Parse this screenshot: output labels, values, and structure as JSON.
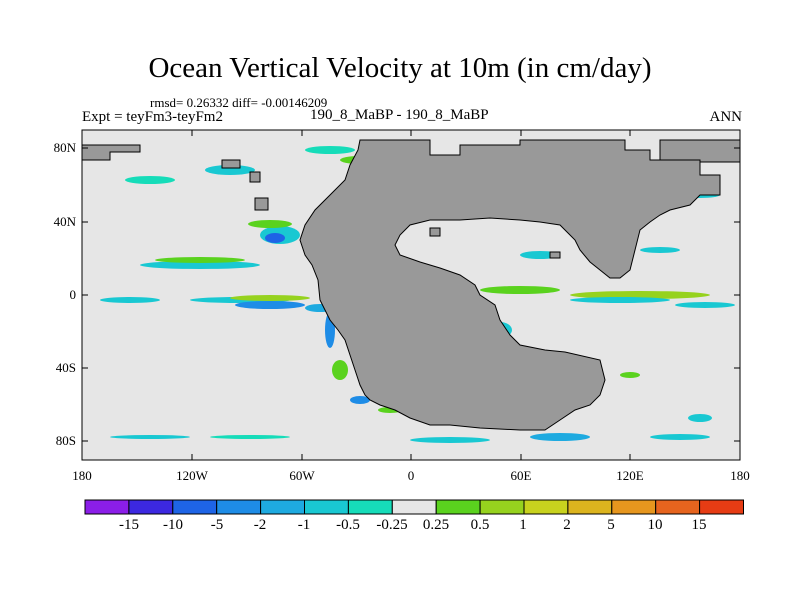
{
  "title": "Ocean Vertical Velocity at 10m (in cm/day)",
  "stats": "rmsd= 0.26332 diff= -0.00146209",
  "expt": "Expt = teyFm3-teyFm2",
  "center_label": "190_8_MaBP - 190_8_MaBP",
  "season": "ANN",
  "lat_ticks": [
    "80N",
    "40N",
    "0",
    "40S",
    "80S"
  ],
  "lon_ticks": [
    "180",
    "120W",
    "60W",
    "0",
    "60E",
    "120E",
    "180"
  ],
  "colorbar": {
    "colors": [
      "#8b1ee8",
      "#3c28e0",
      "#1e64e6",
      "#1e8ce6",
      "#1eaae0",
      "#19c8d2",
      "#16dcb9",
      "#e6e6e6",
      "#5ad21e",
      "#96d21e",
      "#c8d21e",
      "#dcb41e",
      "#e6961e",
      "#e6641e",
      "#e63c14"
    ],
    "labels": [
      "-15",
      "-10",
      "-5",
      "-2",
      "-1",
      "-0.5",
      "-0.25",
      "0.25",
      "0.5",
      "1",
      "2",
      "5",
      "10",
      "15"
    ]
  },
  "colors": {
    "land": "#999999",
    "background": "#e6e6e6"
  }
}
